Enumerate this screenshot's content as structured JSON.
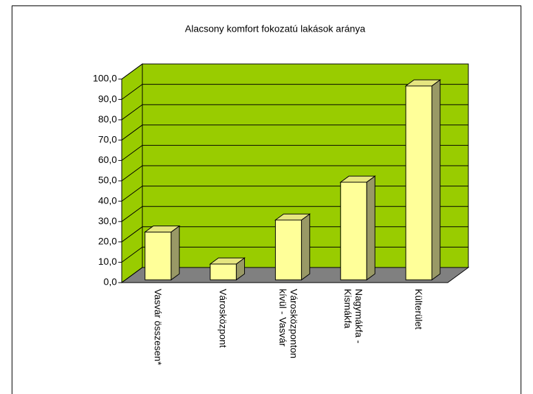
{
  "chart_data": {
    "type": "bar3d",
    "title": "Alacsony komfort fokozatú lakások aránya",
    "categories": [
      "Vasvár összesen*",
      "Városközpont",
      "Városközponton kívül - Vasvár",
      "Nagymákfa - Kismákfa",
      "Külterület"
    ],
    "values": [
      23.5,
      7.8,
      29.4,
      48,
      95.3
    ],
    "color": "#ffff99",
    "wall_color": "#99cc00",
    "floor_color": "#808080",
    "ylim": [
      0,
      100
    ],
    "yticks": [
      {
        "value": 0,
        "label": "0,0"
      },
      {
        "value": 10,
        "label": "10,0"
      },
      {
        "value": 20,
        "label": "20,0"
      },
      {
        "value": 30,
        "label": "30,0"
      },
      {
        "value": 40,
        "label": "40,0"
      },
      {
        "value": 50,
        "label": "50,0"
      },
      {
        "value": 60,
        "label": "60,0"
      },
      {
        "value": 70,
        "label": "70,0"
      },
      {
        "value": 80,
        "label": "80,0"
      },
      {
        "value": 90,
        "label": "90,0"
      },
      {
        "value": 100,
        "label": "100,0"
      }
    ],
    "grid": true
  }
}
